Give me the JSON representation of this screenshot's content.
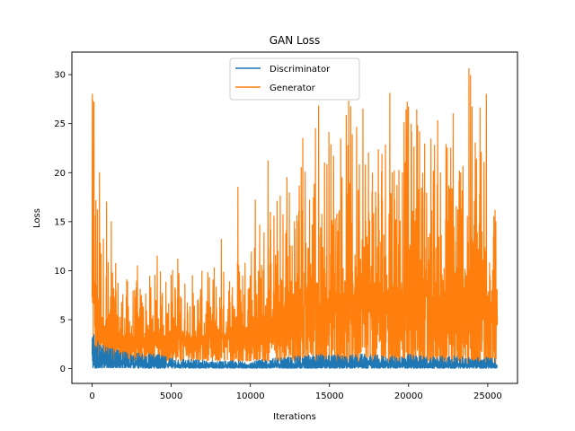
{
  "chart_data": {
    "type": "line",
    "title": "GAN Loss",
    "xlabel": "Iterations",
    "ylabel": "Loss",
    "xlim": [
      -1280,
      26880
    ],
    "ylim": [
      -1.5,
      32.3
    ],
    "xticks": [
      0,
      5000,
      10000,
      15000,
      20000,
      25000
    ],
    "yticks": [
      0,
      5,
      10,
      15,
      20,
      25,
      30
    ],
    "grid": false,
    "legend": "top-center",
    "series": [
      {
        "name": "Discriminator",
        "color": "#1f77b4",
        "envelope": {
          "x": [
            0,
            200,
            500,
            1000,
            2000,
            3000,
            4000,
            5000,
            6000,
            7000,
            8000,
            9000,
            10000,
            11000,
            12000,
            13000,
            14000,
            15000,
            16000,
            17000,
            18000,
            19000,
            20000,
            21000,
            22000,
            23000,
            24000,
            25000,
            25600
          ],
          "low": [
            0.1,
            0.05,
            0.1,
            0.1,
            0.1,
            0.05,
            0.05,
            0.05,
            0.05,
            0.05,
            0.05,
            0.05,
            0.05,
            0.05,
            0.05,
            0.05,
            0.05,
            0.05,
            0.05,
            0.05,
            0.05,
            0.05,
            0.05,
            0.05,
            0.05,
            0.05,
            0.05,
            0.05,
            0.05
          ],
          "high": [
            4.0,
            3.0,
            2.5,
            2.2,
            1.8,
            1.6,
            1.5,
            1.2,
            1.0,
            0.9,
            0.8,
            0.8,
            0.8,
            1.0,
            1.2,
            1.3,
            1.5,
            1.5,
            1.4,
            1.5,
            1.4,
            1.3,
            1.5,
            1.3,
            1.4,
            1.3,
            1.2,
            1.2,
            1.0
          ]
        }
      },
      {
        "name": "Generator",
        "color": "#ff7f0e",
        "envelope": {
          "x": [
            0,
            200,
            500,
            1000,
            2000,
            3000,
            4000,
            5000,
            6000,
            7000,
            8000,
            9000,
            10000,
            11000,
            12000,
            13000,
            14000,
            15000,
            16000,
            17000,
            18000,
            19000,
            20000,
            21000,
            22000,
            23000,
            24000,
            25000,
            25600
          ],
          "low": [
            4.0,
            1.5,
            1.0,
            0.8,
            0.8,
            0.8,
            0.8,
            0.8,
            0.8,
            0.8,
            0.8,
            0.8,
            0.8,
            0.8,
            0.8,
            0.8,
            0.5,
            0.3,
            0.3,
            0.3,
            0.3,
            0.3,
            0.3,
            0.3,
            0.3,
            0.3,
            0.3,
            0.3,
            0.3
          ],
          "high": [
            28.0,
            25.0,
            17.0,
            12.0,
            9.5,
            9.0,
            10.0,
            11.0,
            10.0,
            10.0,
            10.0,
            12.0,
            15.0,
            17.0,
            19.0,
            22.0,
            24.0,
            26.0,
            27.0,
            27.0,
            28.0,
            27.5,
            27.0,
            27.0,
            26.0,
            26.0,
            30.6,
            28.0,
            20.0
          ]
        },
        "peaks": [
          {
            "x": 0,
            "y": 28.0
          },
          {
            "x": 100,
            "y": 27.2
          },
          {
            "x": 450,
            "y": 20.0
          },
          {
            "x": 900,
            "y": 17.0
          },
          {
            "x": 1200,
            "y": 15.0
          },
          {
            "x": 2850,
            "y": 10.5
          },
          {
            "x": 4100,
            "y": 11.5
          },
          {
            "x": 5400,
            "y": 11.2
          },
          {
            "x": 7700,
            "y": 10.3
          },
          {
            "x": 8150,
            "y": 13.2
          },
          {
            "x": 9200,
            "y": 18.5
          },
          {
            "x": 10300,
            "y": 17.2
          },
          {
            "x": 11100,
            "y": 21.2
          },
          {
            "x": 12300,
            "y": 19.5
          },
          {
            "x": 13300,
            "y": 23.5
          },
          {
            "x": 14100,
            "y": 24.5
          },
          {
            "x": 14300,
            "y": 26.8
          },
          {
            "x": 16200,
            "y": 27.3
          },
          {
            "x": 17100,
            "y": 26.5
          },
          {
            "x": 18800,
            "y": 28.1
          },
          {
            "x": 19900,
            "y": 27.2
          },
          {
            "x": 20500,
            "y": 26.4
          },
          {
            "x": 22800,
            "y": 26.0
          },
          {
            "x": 23800,
            "y": 30.6
          },
          {
            "x": 24900,
            "y": 28.0
          }
        ]
      }
    ]
  }
}
